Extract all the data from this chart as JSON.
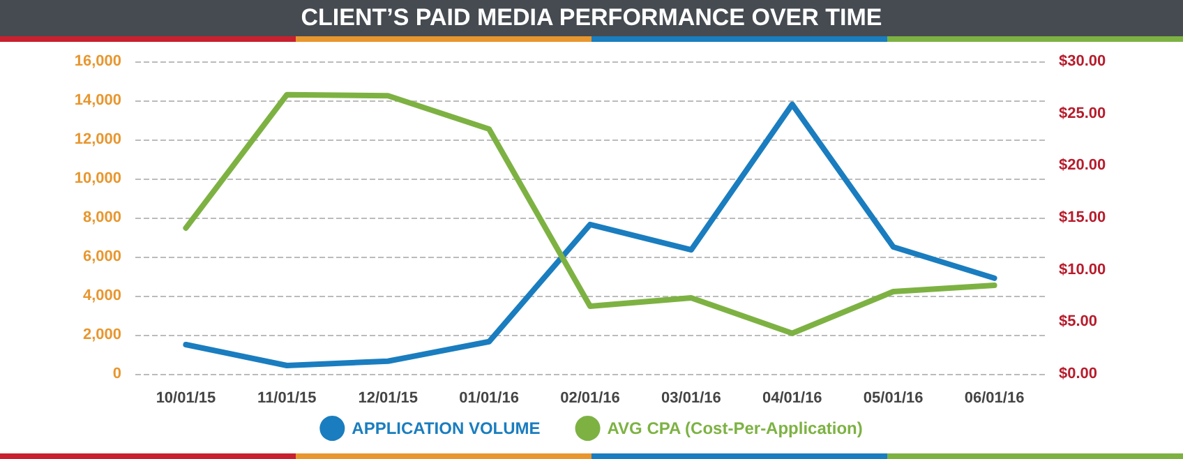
{
  "chart_data": {
    "type": "line",
    "title": "CLIENT’S PAID MEDIA PERFORMANCE OVER TIME",
    "categories": [
      "10/01/15",
      "11/01/15",
      "12/01/15",
      "01/01/16",
      "02/01/16",
      "03/01/16",
      "04/01/16",
      "05/01/16",
      "06/01/16"
    ],
    "series": [
      {
        "name": "APPLICATION VOLUME",
        "color": "#1a7dbf",
        "values": [
          1500,
          430,
          650,
          1650,
          7650,
          6350,
          13800,
          6500,
          4900
        ]
      },
      {
        "name": "AVG CPA (Cost-Per-Application)",
        "color": "#7db243",
        "axis": "y2",
        "values": [
          14.0,
          26.8,
          26.7,
          23.5,
          6.5,
          7.3,
          3.9,
          7.9,
          8.5
        ]
      }
    ],
    "ylim": [
      0,
      16000
    ],
    "yticks": [
      {
        "value": 0,
        "label": "0"
      },
      {
        "value": 2000,
        "label": "2,000"
      },
      {
        "value": 4000,
        "label": "4,000"
      },
      {
        "value": 6000,
        "label": "6,000"
      },
      {
        "value": 8000,
        "label": "8,000"
      },
      {
        "value": 10000,
        "label": "10,000"
      },
      {
        "value": 12000,
        "label": "12,000"
      },
      {
        "value": 14000,
        "label": "14,000"
      },
      {
        "value": 16000,
        "label": "16,000"
      }
    ],
    "y2lim": [
      0,
      30
    ],
    "y2ticks": [
      {
        "value": 0,
        "label": "$0.00"
      },
      {
        "value": 5,
        "label": "$5.00"
      },
      {
        "value": 10,
        "label": "$10.00"
      },
      {
        "value": 15,
        "label": "$15.00"
      },
      {
        "value": 20,
        "label": "$20.00"
      },
      {
        "value": 25,
        "label": "$25.00"
      },
      {
        "value": 30,
        "label": "$30.00"
      }
    ],
    "grid": "y",
    "legend": "bottom",
    "marker": "none",
    "line_style": "solid"
  }
}
